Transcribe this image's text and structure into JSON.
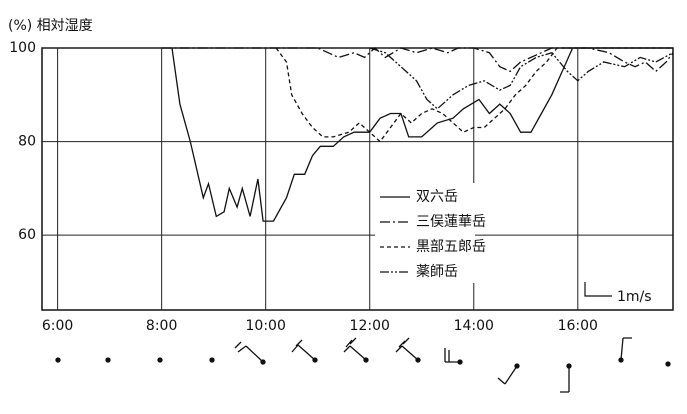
{
  "chart_data": {
    "type": "line",
    "y_label": "(%) 相対湿度",
    "scale_label": "1m/s",
    "xlim": [
      5.7,
      17.83
    ],
    "ylim": [
      44,
      100
    ],
    "xticks": [
      {
        "value": 6,
        "label": "6:00"
      },
      {
        "value": 8,
        "label": "8:00"
      },
      {
        "value": 10,
        "label": "10:00"
      },
      {
        "value": 12,
        "label": "12:00"
      },
      {
        "value": 14,
        "label": "14:00"
      },
      {
        "value": 16,
        "label": "16:00"
      }
    ],
    "yticks": [
      60,
      80,
      100
    ],
    "grid": true,
    "series": [
      {
        "name": "双六岳",
        "color": "#111",
        "style": "solid",
        "x": [
          8.2,
          8.35,
          8.55,
          8.8,
          8.9,
          9.05,
          9.2,
          9.3,
          9.45,
          9.55,
          9.7,
          9.85,
          9.95,
          10.15,
          10.4,
          10.55,
          10.75,
          10.9,
          11.05,
          11.3,
          11.5,
          11.7,
          12.0,
          12.2,
          12.4,
          12.6,
          12.75,
          13.0,
          13.3,
          13.6,
          13.8,
          14.1,
          14.3,
          14.5,
          14.7,
          14.9,
          15.1,
          15.3,
          15.5,
          15.7,
          15.9,
          17.83
        ],
        "values": [
          100,
          88,
          80,
          68,
          71,
          64,
          65,
          70,
          66,
          70,
          64,
          72,
          63,
          63,
          68,
          73,
          73,
          77,
          79,
          79,
          81,
          82,
          82,
          85,
          86,
          86,
          81,
          81,
          84,
          85,
          87,
          89,
          86,
          88,
          86,
          82,
          82,
          86,
          90,
          95,
          100,
          100
        ]
      },
      {
        "name": "三俣蓮華岳",
        "color": "#111",
        "style": "dashdot",
        "x": [
          8.0,
          10.7,
          11.0,
          11.2,
          11.4,
          11.7,
          11.9,
          12.1,
          12.3,
          12.6,
          12.9,
          13.2,
          13.5,
          13.7,
          14.0,
          14.3,
          14.5,
          14.7,
          14.9,
          15.1,
          15.3,
          15.5,
          16.2,
          16.6,
          16.9,
          17.1,
          17.3,
          17.5,
          17.7,
          17.83
        ],
        "values": [
          100,
          100,
          100,
          99,
          98,
          99,
          98,
          100,
          98,
          100,
          99,
          100,
          99,
          100,
          100,
          99,
          96,
          95,
          97,
          98,
          99,
          100,
          100,
          99,
          97,
          96,
          97,
          95,
          97,
          99
        ]
      },
      {
        "name": "黒部五郎岳",
        "color": "#111",
        "style": "dashed",
        "x": [
          10.2,
          10.4,
          10.5,
          10.7,
          10.9,
          11.1,
          11.3,
          11.6,
          11.8,
          12.0,
          12.2,
          12.4,
          12.6,
          12.8,
          13.0,
          13.2,
          13.4,
          13.6,
          13.8,
          14.0,
          14.2,
          14.4,
          14.6,
          14.8,
          15.0,
          15.2,
          15.4,
          15.6,
          17.83
        ],
        "values": [
          100,
          97,
          90,
          86,
          83,
          81,
          81,
          82,
          84,
          82,
          80,
          83,
          86,
          84,
          86,
          87,
          86,
          84,
          82,
          83,
          83,
          85,
          87,
          90,
          92,
          95,
          97,
          100,
          100
        ]
      },
      {
        "name": "薬師岳",
        "color": "#111",
        "style": "dashdotdot",
        "x": [
          12.0,
          12.3,
          12.6,
          12.9,
          13.1,
          13.3,
          13.6,
          13.9,
          14.2,
          14.5,
          14.7,
          14.9,
          15.2,
          15.5,
          15.8,
          16.0,
          16.2,
          16.5,
          16.9,
          17.2,
          17.5,
          17.83
        ],
        "values": [
          100,
          99,
          96,
          93,
          89,
          87,
          90,
          92,
          93,
          91,
          92,
          96,
          98,
          99,
          95,
          93,
          95,
          97,
          96,
          98,
          97,
          99
        ]
      }
    ]
  }
}
